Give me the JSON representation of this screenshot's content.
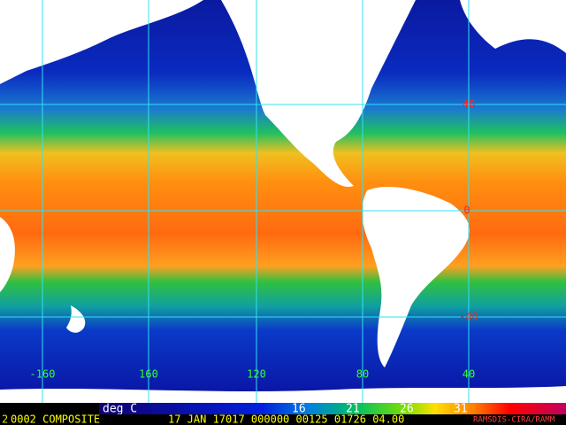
{
  "map": {
    "longitude_labels": [
      "-160",
      "160",
      "120",
      "80",
      "40"
    ],
    "latitude_labels": [
      "40",
      "0",
      "-40"
    ],
    "legend": {
      "unit": "deg C",
      "labels": [
        "16",
        "21",
        "26",
        "31"
      ]
    },
    "footer": {
      "frame": "2",
      "product": "0002 COMPOSITE",
      "timestamp": "17 JAN 17017 000000 00125 01726 04.00",
      "credit": "RAMSDIS-CIRA/RAMM"
    }
  }
}
